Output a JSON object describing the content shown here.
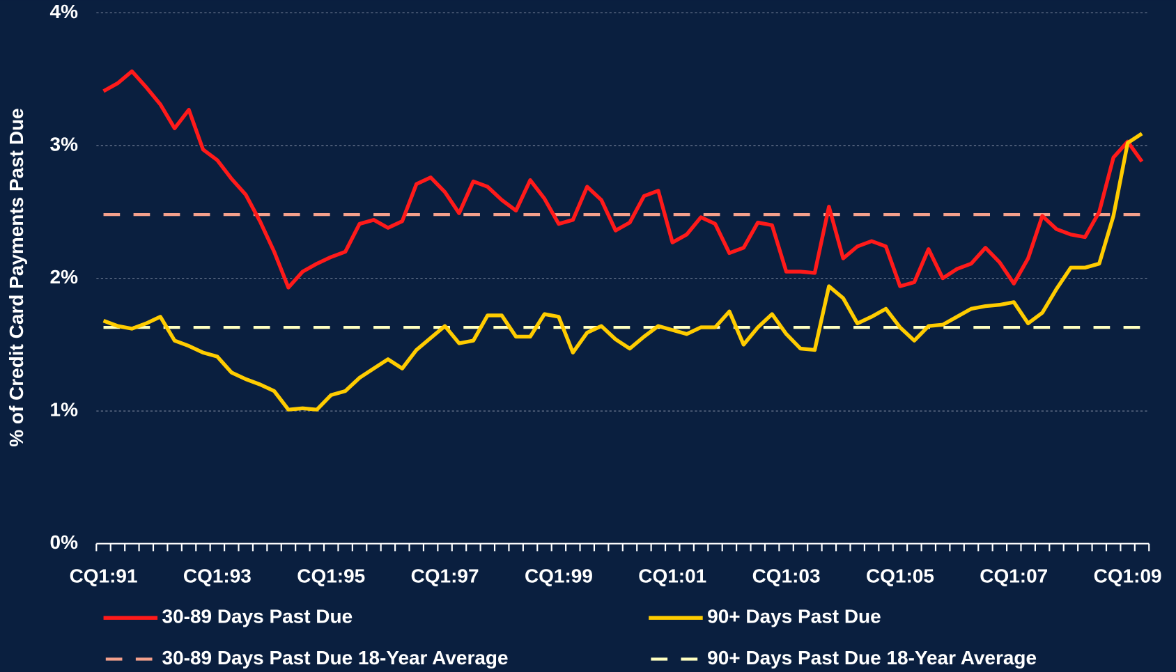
{
  "chart_data": {
    "type": "line",
    "ylabel": "% of Credit Card Payments Past Due",
    "categories": [
      "CQ1:91",
      null,
      null,
      null,
      null,
      null,
      null,
      null,
      "CQ1:93",
      null,
      null,
      null,
      null,
      null,
      null,
      null,
      "CQ1:95",
      null,
      null,
      null,
      null,
      null,
      null,
      null,
      "CQ1:97",
      null,
      null,
      null,
      null,
      null,
      null,
      null,
      "CQ1:99",
      null,
      null,
      null,
      null,
      null,
      null,
      null,
      "CQ1:01",
      null,
      null,
      null,
      null,
      null,
      null,
      null,
      "CQ1:03",
      null,
      null,
      null,
      null,
      null,
      null,
      null,
      "CQ1:05",
      null,
      null,
      null,
      null,
      null,
      null,
      null,
      "CQ1:07",
      null,
      null,
      null,
      null,
      null,
      null,
      null,
      "CQ1:09",
      null
    ],
    "series": [
      {
        "name": "30-89 Days Past Due",
        "color": "#ff1a1a",
        "values": [
          3.41,
          3.47,
          3.56,
          3.44,
          3.31,
          3.13,
          3.27,
          2.97,
          2.89,
          2.75,
          2.63,
          2.43,
          2.2,
          1.93,
          2.05,
          2.11,
          2.16,
          2.2,
          2.41,
          2.44,
          2.38,
          2.43,
          2.71,
          2.76,
          2.65,
          2.49,
          2.73,
          2.69,
          2.59,
          2.51,
          2.74,
          2.6,
          2.41,
          2.44,
          2.69,
          2.59,
          2.36,
          2.42,
          2.62,
          2.66,
          2.27,
          2.33,
          2.46,
          2.41,
          2.19,
          2.23,
          2.42,
          2.4,
          2.05,
          2.05,
          2.04,
          2.54,
          2.15,
          2.24,
          2.28,
          2.24,
          1.94,
          1.97,
          2.22,
          2.0,
          2.07,
          2.11,
          2.23,
          2.12,
          1.96,
          2.15,
          2.47,
          2.37,
          2.33,
          2.31,
          2.5,
          2.91,
          3.03,
          2.88
        ]
      },
      {
        "name": "90+ Days Past Due",
        "color": "#ffcc00",
        "values": [
          1.68,
          1.64,
          1.62,
          1.66,
          1.71,
          1.53,
          1.49,
          1.44,
          1.41,
          1.29,
          1.24,
          1.2,
          1.15,
          1.01,
          1.02,
          1.01,
          1.12,
          1.15,
          1.25,
          1.32,
          1.39,
          1.32,
          1.46,
          1.55,
          1.64,
          1.51,
          1.53,
          1.72,
          1.72,
          1.56,
          1.56,
          1.73,
          1.71,
          1.44,
          1.59,
          1.64,
          1.54,
          1.47,
          1.56,
          1.64,
          1.61,
          1.58,
          1.63,
          1.63,
          1.75,
          1.5,
          1.63,
          1.73,
          1.58,
          1.47,
          1.46,
          1.94,
          1.85,
          1.66,
          1.71,
          1.77,
          1.63,
          1.53,
          1.64,
          1.65,
          1.71,
          1.77,
          1.79,
          1.8,
          1.82,
          1.66,
          1.74,
          1.92,
          2.08,
          2.08,
          2.11,
          2.47,
          3.02,
          3.09
        ]
      }
    ],
    "reference_lines": [
      {
        "name": "30-89 Days Past Due 18-Year Average",
        "color": "#f4a08c",
        "value": 2.48
      },
      {
        "name": "90+ Days Past Due 18-Year Average",
        "color": "#ffffc0",
        "value": 1.63
      }
    ],
    "ylim": [
      0,
      4
    ],
    "yticks": [
      {
        "value": 0,
        "label": "0%"
      },
      {
        "value": 1,
        "label": "1%"
      },
      {
        "value": 2,
        "label": "2%"
      },
      {
        "value": 3,
        "label": "3%"
      },
      {
        "value": 4,
        "label": "4%"
      }
    ],
    "grid": true
  }
}
